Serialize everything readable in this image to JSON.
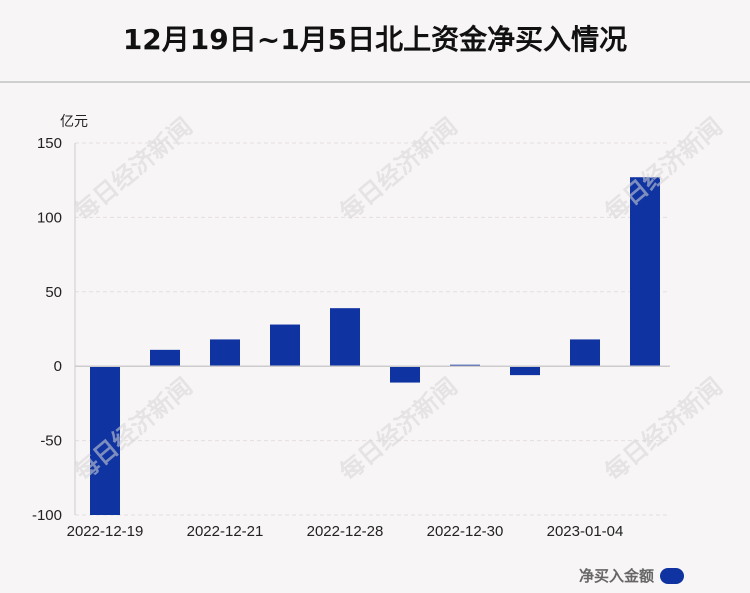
{
  "title": "12月19日~1月5日北上资金净买入情况",
  "watermark": "每日经济新闻",
  "legend_label": "净买入金额",
  "chart_data": {
    "type": "bar",
    "unit_label": "亿元",
    "ylim": [
      -100,
      150
    ],
    "yticks": [
      150,
      100,
      50,
      0,
      -50,
      -100
    ],
    "categories": [
      "2022-12-19",
      "",
      "2022-12-21",
      "",
      "2022-12-28",
      "",
      "2022-12-30",
      "",
      "2023-01-04",
      ""
    ],
    "values": [
      -100,
      11,
      18,
      28,
      39,
      -11,
      1,
      -6,
      18,
      127
    ],
    "bar_color": "#0f34a2",
    "grid": true,
    "legend_position": "bottom-right"
  }
}
